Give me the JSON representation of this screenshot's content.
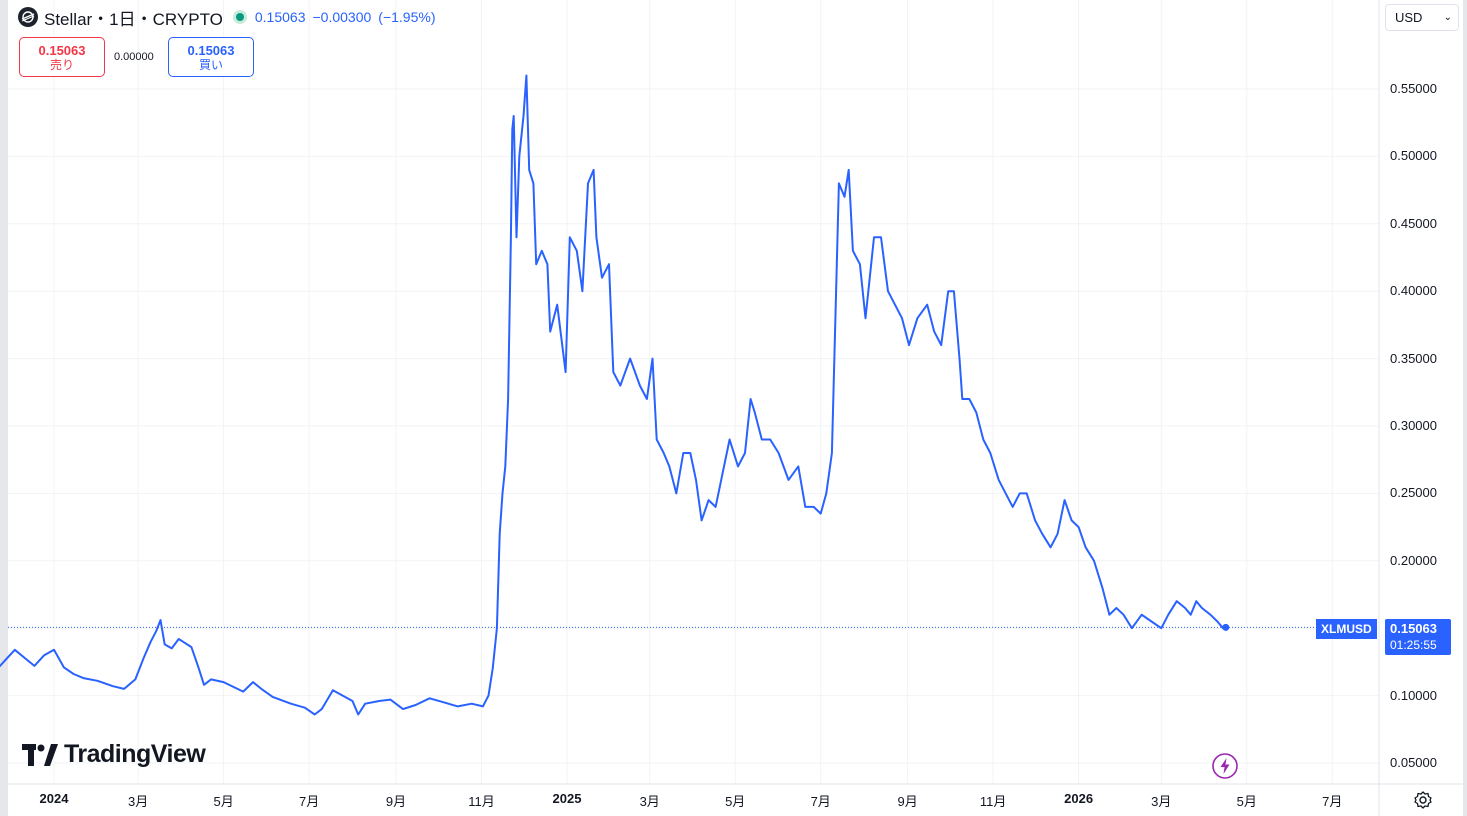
{
  "header": {
    "title": "Stellar・1日・CRYPTO",
    "price": "0.15063",
    "change": "−0.00300",
    "change_pct": "(−1.95%)",
    "logo_icon": "stellar-logo-icon"
  },
  "trade": {
    "sell_price": "0.15063",
    "sell_label": "売り",
    "spread": "0.00000",
    "buy_price": "0.15063",
    "buy_label": "買い"
  },
  "currency_select": {
    "value": "USD"
  },
  "branding": {
    "name": "TradingView"
  },
  "last_price": {
    "symbol": "XLMUSD",
    "value": "0.15063",
    "countdown": "01:25:55"
  },
  "colors": {
    "line": "#2962ff",
    "grid": "#f2f3f5",
    "sell": "#f23645",
    "buy": "#2962ff",
    "live": "#089981"
  },
  "chart_data": {
    "type": "line",
    "series": [
      {
        "points": [
          [
            "2023-11-20",
            0.118
          ],
          [
            "2023-11-27",
            0.126
          ],
          [
            "2023-12-04",
            0.134
          ],
          [
            "2023-12-11",
            0.128
          ],
          [
            "2023-12-18",
            0.122
          ],
          [
            "2023-12-25",
            0.13
          ],
          [
            "2024-01-01",
            0.134
          ],
          [
            "2024-01-08",
            0.121
          ],
          [
            "2024-01-15",
            0.116
          ],
          [
            "2024-01-22",
            0.113
          ],
          [
            "2024-02-01",
            0.111
          ],
          [
            "2024-02-12",
            0.107
          ],
          [
            "2024-02-20",
            0.105
          ],
          [
            "2024-02-28",
            0.112
          ],
          [
            "2024-03-05",
            0.128
          ],
          [
            "2024-03-10",
            0.14
          ],
          [
            "2024-03-14",
            0.148
          ],
          [
            "2024-03-17",
            0.156
          ],
          [
            "2024-03-20",
            0.138
          ],
          [
            "2024-03-25",
            0.135
          ],
          [
            "2024-03-30",
            0.142
          ],
          [
            "2024-04-02",
            0.14
          ],
          [
            "2024-04-08",
            0.136
          ],
          [
            "2024-04-13",
            0.121
          ],
          [
            "2024-04-17",
            0.108
          ],
          [
            "2024-04-22",
            0.112
          ],
          [
            "2024-05-01",
            0.11
          ],
          [
            "2024-05-15",
            0.103
          ],
          [
            "2024-05-22",
            0.11
          ],
          [
            "2024-05-28",
            0.105
          ],
          [
            "2024-06-05",
            0.099
          ],
          [
            "2024-06-18",
            0.094
          ],
          [
            "2024-06-28",
            0.091
          ],
          [
            "2024-07-05",
            0.086
          ],
          [
            "2024-07-10",
            0.09
          ],
          [
            "2024-07-18",
            0.104
          ],
          [
            "2024-07-25",
            0.1
          ],
          [
            "2024-08-01",
            0.096
          ],
          [
            "2024-08-05",
            0.086
          ],
          [
            "2024-08-10",
            0.094
          ],
          [
            "2024-08-20",
            0.096
          ],
          [
            "2024-08-28",
            0.097
          ],
          [
            "2024-09-06",
            0.09
          ],
          [
            "2024-09-15",
            0.093
          ],
          [
            "2024-09-25",
            0.098
          ],
          [
            "2024-10-05",
            0.095
          ],
          [
            "2024-10-15",
            0.092
          ],
          [
            "2024-10-25",
            0.094
          ],
          [
            "2024-11-02",
            0.092
          ],
          [
            "2024-11-06",
            0.1
          ],
          [
            "2024-11-09",
            0.12
          ],
          [
            "2024-11-12",
            0.15
          ],
          [
            "2024-11-14",
            0.22
          ],
          [
            "2024-11-16",
            0.25
          ],
          [
            "2024-11-18",
            0.27
          ],
          [
            "2024-11-20",
            0.32
          ],
          [
            "2024-11-22",
            0.44
          ],
          [
            "2024-11-23",
            0.52
          ],
          [
            "2024-11-24",
            0.53
          ],
          [
            "2024-11-26",
            0.44
          ],
          [
            "2024-11-28",
            0.5
          ],
          [
            "2024-12-01",
            0.53
          ],
          [
            "2024-12-03",
            0.56
          ],
          [
            "2024-12-05",
            0.49
          ],
          [
            "2024-12-08",
            0.48
          ],
          [
            "2024-12-10",
            0.42
          ],
          [
            "2024-12-14",
            0.43
          ],
          [
            "2024-12-18",
            0.42
          ],
          [
            "2024-12-20",
            0.37
          ],
          [
            "2024-12-25",
            0.39
          ],
          [
            "2024-12-31",
            0.34
          ],
          [
            "2025-01-03",
            0.44
          ],
          [
            "2025-01-08",
            0.43
          ],
          [
            "2025-01-12",
            0.4
          ],
          [
            "2025-01-16",
            0.48
          ],
          [
            "2025-01-20",
            0.49
          ],
          [
            "2025-01-22",
            0.44
          ],
          [
            "2025-01-26",
            0.41
          ],
          [
            "2025-01-31",
            0.42
          ],
          [
            "2025-02-03",
            0.34
          ],
          [
            "2025-02-08",
            0.33
          ],
          [
            "2025-02-15",
            0.35
          ],
          [
            "2025-02-22",
            0.33
          ],
          [
            "2025-02-27",
            0.32
          ],
          [
            "2025-03-03",
            0.35
          ],
          [
            "2025-03-06",
            0.29
          ],
          [
            "2025-03-11",
            0.28
          ],
          [
            "2025-03-15",
            0.27
          ],
          [
            "2025-03-20",
            0.25
          ],
          [
            "2025-03-25",
            0.28
          ],
          [
            "2025-03-30",
            0.28
          ],
          [
            "2025-04-03",
            0.26
          ],
          [
            "2025-04-07",
            0.23
          ],
          [
            "2025-04-12",
            0.245
          ],
          [
            "2025-04-17",
            0.24
          ],
          [
            "2025-04-22",
            0.265
          ],
          [
            "2025-04-27",
            0.29
          ],
          [
            "2025-05-03",
            0.27
          ],
          [
            "2025-05-08",
            0.28
          ],
          [
            "2025-05-12",
            0.32
          ],
          [
            "2025-05-15",
            0.31
          ],
          [
            "2025-05-20",
            0.29
          ],
          [
            "2025-05-26",
            0.29
          ],
          [
            "2025-06-01",
            0.28
          ],
          [
            "2025-06-08",
            0.26
          ],
          [
            "2025-06-15",
            0.27
          ],
          [
            "2025-06-20",
            0.24
          ],
          [
            "2025-06-26",
            0.24
          ],
          [
            "2025-07-01",
            0.235
          ],
          [
            "2025-07-05",
            0.25
          ],
          [
            "2025-07-09",
            0.28
          ],
          [
            "2025-07-12",
            0.4
          ],
          [
            "2025-07-14",
            0.48
          ],
          [
            "2025-07-18",
            0.47
          ],
          [
            "2025-07-21",
            0.49
          ],
          [
            "2025-07-24",
            0.43
          ],
          [
            "2025-07-29",
            0.42
          ],
          [
            "2025-08-02",
            0.38
          ],
          [
            "2025-08-08",
            0.44
          ],
          [
            "2025-08-13",
            0.44
          ],
          [
            "2025-08-18",
            0.4
          ],
          [
            "2025-08-23",
            0.39
          ],
          [
            "2025-08-28",
            0.38
          ],
          [
            "2025-09-02",
            0.36
          ],
          [
            "2025-09-08",
            0.38
          ],
          [
            "2025-09-15",
            0.39
          ],
          [
            "2025-09-20",
            0.37
          ],
          [
            "2025-09-25",
            0.36
          ],
          [
            "2025-09-30",
            0.4
          ],
          [
            "2025-10-04",
            0.4
          ],
          [
            "2025-10-08",
            0.35
          ],
          [
            "2025-10-10",
            0.32
          ],
          [
            "2025-10-15",
            0.32
          ],
          [
            "2025-10-20",
            0.31
          ],
          [
            "2025-10-25",
            0.29
          ],
          [
            "2025-10-30",
            0.28
          ],
          [
            "2025-11-05",
            0.26
          ],
          [
            "2025-11-10",
            0.25
          ],
          [
            "2025-11-15",
            0.24
          ],
          [
            "2025-11-20",
            0.25
          ],
          [
            "2025-11-25",
            0.25
          ],
          [
            "2025-12-01",
            0.23
          ],
          [
            "2025-12-06",
            0.22
          ],
          [
            "2025-12-12",
            0.21
          ],
          [
            "2025-12-17",
            0.22
          ],
          [
            "2025-12-22",
            0.245
          ],
          [
            "2025-12-27",
            0.23
          ],
          [
            "2026-01-01",
            0.225
          ],
          [
            "2026-01-06",
            0.21
          ],
          [
            "2026-01-12",
            0.2
          ],
          [
            "2026-01-18",
            0.18
          ],
          [
            "2026-01-23",
            0.16
          ],
          [
            "2026-01-28",
            0.165
          ],
          [
            "2026-02-02",
            0.16
          ],
          [
            "2026-02-08",
            0.15
          ],
          [
            "2026-02-15",
            0.16
          ],
          [
            "2026-02-22",
            0.155
          ],
          [
            "2026-03-01",
            0.15
          ],
          [
            "2026-03-06",
            0.16
          ],
          [
            "2026-03-12",
            0.17
          ],
          [
            "2026-03-18",
            0.165
          ],
          [
            "2026-03-22",
            0.16
          ],
          [
            "2026-03-26",
            0.17
          ],
          [
            "2026-03-30",
            0.165
          ],
          [
            "2026-04-05",
            0.16
          ],
          [
            "2026-04-10",
            0.155
          ],
          [
            "2026-04-14",
            0.15
          ],
          [
            "2026-04-16",
            0.15063
          ]
        ]
      }
    ],
    "x_ticks": [
      {
        "label": "2024",
        "date": "2024-01-01",
        "bold": true
      },
      {
        "label": "3月",
        "date": "2024-03-01",
        "bold": false
      },
      {
        "label": "5月",
        "date": "2024-05-01",
        "bold": false
      },
      {
        "label": "7月",
        "date": "2024-07-01",
        "bold": false
      },
      {
        "label": "9月",
        "date": "2024-09-01",
        "bold": false
      },
      {
        "label": "11月",
        "date": "2024-11-01",
        "bold": false
      },
      {
        "label": "2025",
        "date": "2025-01-01",
        "bold": true
      },
      {
        "label": "3月",
        "date": "2025-03-01",
        "bold": false
      },
      {
        "label": "5月",
        "date": "2025-05-01",
        "bold": false
      },
      {
        "label": "7月",
        "date": "2025-07-01",
        "bold": false
      },
      {
        "label": "9月",
        "date": "2025-09-01",
        "bold": false
      },
      {
        "label": "11月",
        "date": "2025-11-01",
        "bold": false
      },
      {
        "label": "2026",
        "date": "2026-01-01",
        "bold": true
      },
      {
        "label": "3月",
        "date": "2026-03-01",
        "bold": false
      },
      {
        "label": "5月",
        "date": "2026-05-01",
        "bold": false
      },
      {
        "label": "7月",
        "date": "2026-07-01",
        "bold": false
      }
    ],
    "y_ticks": [
      "0.55000",
      "0.50000",
      "0.45000",
      "0.40000",
      "0.35000",
      "0.30000",
      "0.25000",
      "0.20000",
      "0.15000",
      "0.10000",
      "0.05000"
    ],
    "ylim": [
      0.05,
      0.55
    ],
    "xlim": [
      "2023-11-20",
      "2026-07-31"
    ],
    "grid": true,
    "last_value": 0.15063
  }
}
